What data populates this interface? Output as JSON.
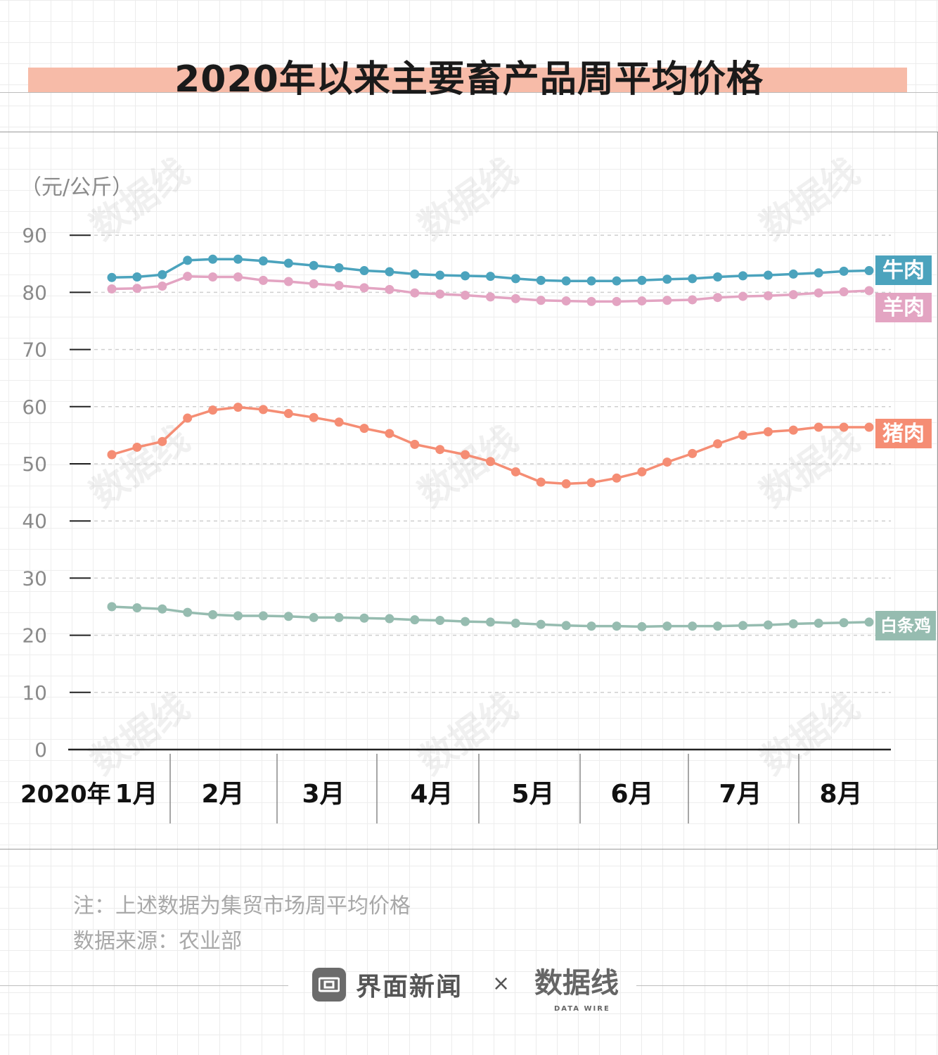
{
  "title": "2020年以来主要畜产品周平均价格",
  "unit_label": "（元/公斤）",
  "notes": {
    "note": "注：上述数据为集贸市场周平均价格",
    "source": "数据来源：农业部"
  },
  "footer": {
    "brand": "界面新闻",
    "times": "×",
    "partner_logo": "数据线",
    "partner_sub": "DATA WIRE"
  },
  "colors": {
    "beef": "#4ba3bd",
    "mutton": "#e3a4c2",
    "pork": "#f58d74",
    "chicken": "#96bcb0"
  },
  "chart_data": {
    "type": "line",
    "ylim": [
      0,
      90
    ],
    "yticks": [
      "0",
      "10",
      "20",
      "30",
      "40",
      "50",
      "60",
      "70",
      "80",
      "90"
    ],
    "year_label": "2020年",
    "months": [
      "1月",
      "2月",
      "3月",
      "4月",
      "5月",
      "6月",
      "7月",
      "8月"
    ],
    "grid": true,
    "series": [
      {
        "name": "牛肉",
        "key": "beef",
        "values": [
          82.6,
          82.7,
          83.1,
          85.6,
          85.8,
          85.8,
          85.5,
          85.1,
          84.7,
          84.3,
          83.8,
          83.6,
          83.2,
          83.0,
          82.9,
          82.8,
          82.4,
          82.1,
          82.0,
          82.0,
          82.0,
          82.1,
          82.3,
          82.4,
          82.7,
          82.9,
          83.0,
          83.2,
          83.4,
          83.7,
          83.8
        ]
      },
      {
        "name": "羊肉",
        "key": "mutton",
        "values": [
          80.6,
          80.7,
          81.1,
          82.8,
          82.7,
          82.7,
          82.1,
          81.9,
          81.5,
          81.2,
          80.8,
          80.5,
          79.9,
          79.7,
          79.5,
          79.2,
          78.9,
          78.6,
          78.5,
          78.4,
          78.4,
          78.5,
          78.6,
          78.7,
          79.1,
          79.3,
          79.4,
          79.6,
          79.9,
          80.1,
          80.3
        ]
      },
      {
        "name": "猪肉",
        "key": "pork",
        "values": [
          51.6,
          52.9,
          53.9,
          58.0,
          59.4,
          59.9,
          59.5,
          58.8,
          58.1,
          57.3,
          56.2,
          55.3,
          53.4,
          52.5,
          51.6,
          50.4,
          48.6,
          46.8,
          46.5,
          46.7,
          47.5,
          48.6,
          50.3,
          51.8,
          53.5,
          55.0,
          55.6,
          55.9,
          56.4,
          56.4,
          56.4
        ]
      },
      {
        "name": "白条鸡",
        "key": "chicken",
        "values": [
          25.0,
          24.8,
          24.6,
          24.0,
          23.6,
          23.4,
          23.4,
          23.3,
          23.1,
          23.1,
          23.0,
          22.9,
          22.7,
          22.6,
          22.4,
          22.3,
          22.1,
          21.9,
          21.7,
          21.6,
          21.6,
          21.5,
          21.6,
          21.6,
          21.6,
          21.7,
          21.8,
          22.0,
          22.1,
          22.2,
          22.3
        ]
      }
    ]
  }
}
